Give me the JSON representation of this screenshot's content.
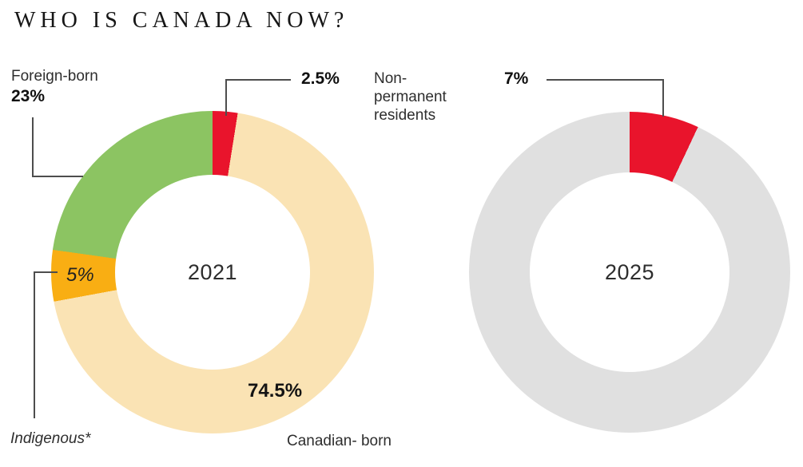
{
  "title": "WHO IS CANADA NOW?",
  "colors": {
    "red": "#e9142c",
    "green": "#8cc462",
    "orange": "#f9ae13",
    "tan": "#fae3b4",
    "gray": "#e0e0e0",
    "leader_line": "#4d4d4d",
    "text_dark": "#1c1c1c"
  },
  "chart_data": [
    {
      "type": "pie",
      "subtype": "donut",
      "center_label": "2021",
      "legend_position": "callouts",
      "segments": [
        {
          "label": "Non-permanent residents",
          "value": 2.5,
          "display": "2.5%",
          "color": "#e9142c",
          "start_deg": 0,
          "end_deg": 9
        },
        {
          "label": "Canadian- born",
          "value": 74.5,
          "display": "74.5%",
          "color": "#fae3b4",
          "start_deg": 9,
          "end_deg": 259.5
        },
        {
          "label": "Indigenous*",
          "value": 5,
          "display": "5%",
          "color": "#f9ae13",
          "start_deg": 259.5,
          "end_deg": 278
        },
        {
          "label": "Foreign-born",
          "value": 23,
          "display": "23%",
          "color": "#8cc462",
          "start_deg": 278,
          "end_deg": 360
        }
      ]
    },
    {
      "type": "pie",
      "subtype": "donut",
      "center_label": "2025",
      "legend_position": "callouts",
      "segments": [
        {
          "label": "Non-permanent residents",
          "value": 7,
          "display": "7%",
          "color": "#e9142c",
          "start_deg": 0,
          "end_deg": 25.2
        },
        {
          "label": "",
          "value": null,
          "display": "",
          "color": "#e0e0e0",
          "start_deg": 25.2,
          "end_deg": 360
        }
      ]
    }
  ]
}
